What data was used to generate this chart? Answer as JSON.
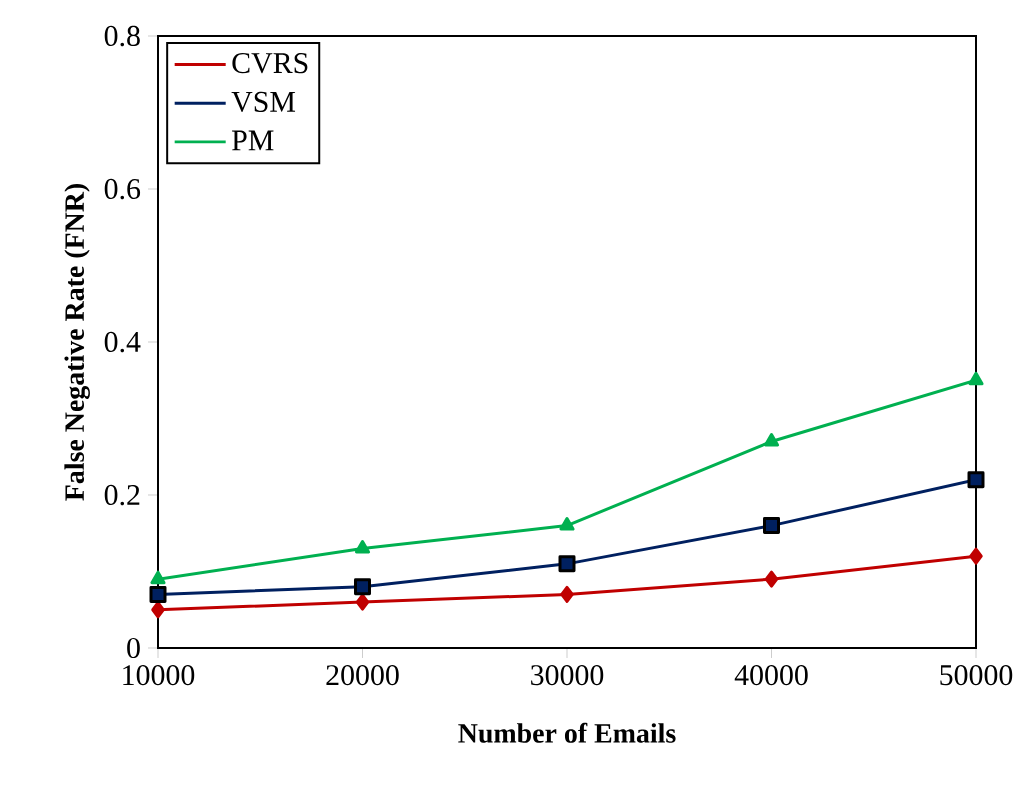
{
  "chart_data": {
    "type": "line",
    "xlabel": "Number of Emails",
    "ylabel": "False Negative Rate (FNR)",
    "x": [
      10000,
      20000,
      30000,
      40000,
      50000
    ],
    "xlim": [
      10000,
      50000
    ],
    "xticks": [
      10000,
      20000,
      30000,
      40000,
      50000
    ],
    "ylim": [
      0,
      0.8
    ],
    "yticks": [
      0,
      0.2,
      0.4,
      0.6,
      0.8
    ],
    "grid": false,
    "legend": "top left",
    "series": [
      {
        "name": "CVRS",
        "color": "#c00000",
        "marker": "diamond",
        "values": [
          0.05,
          0.06,
          0.07,
          0.09,
          0.12
        ]
      },
      {
        "name": "VSM",
        "color": "#002060",
        "marker": "square",
        "values": [
          0.07,
          0.08,
          0.11,
          0.16,
          0.22
        ]
      },
      {
        "name": "PM",
        "color": "#00b050",
        "marker": "triangle",
        "values": [
          0.09,
          0.13,
          0.16,
          0.27,
          0.35
        ]
      }
    ]
  }
}
